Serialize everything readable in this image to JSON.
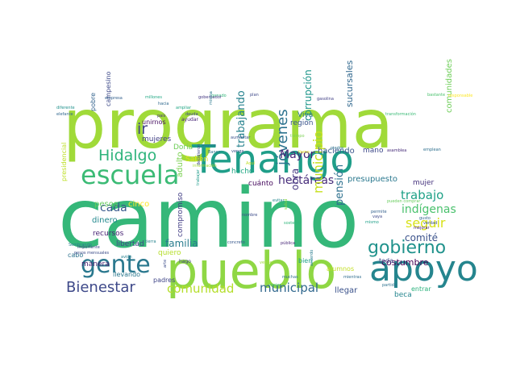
{
  "word_cloud": {
    "words": [
      {
        "text": "camino",
        "color": "#35b779"
      },
      {
        "text": "programa",
        "color": "#a0da39"
      },
      {
        "text": "pueblo",
        "color": "#8fd744"
      },
      {
        "text": "Tenango",
        "color": "#1f9e89"
      },
      {
        "text": "apoyo",
        "color": "#25858e"
      },
      {
        "text": "escuela",
        "color": "#3bbb75"
      },
      {
        "text": "gente",
        "color": "#2a788e"
      },
      {
        "text": "gobierno",
        "color": "#20928c"
      },
      {
        "text": "Hidalgo",
        "color": "#2fb47c"
      },
      {
        "text": "Bienestar",
        "color": "#3e4989"
      },
      {
        "text": "comunidad",
        "color": "#b5de2b"
      },
      {
        "text": "municipal",
        "color": "#31688e"
      },
      {
        "text": "trabajo",
        "color": "#1fa187"
      },
      {
        "text": "ir",
        "color": "#414487"
      },
      {
        "text": "jóvenes",
        "color": "#2c728e"
      },
      {
        "text": "hectáreas",
        "color": "#472d7b"
      },
      {
        "text": "municipio",
        "color": "#c8e020"
      },
      {
        "text": "seguir",
        "color": "#d8e219"
      },
      {
        "text": "indígenas",
        "color": "#4ac16d"
      },
      {
        "text": "cada",
        "color": "#38598c"
      },
      {
        "text": "familia",
        "color": "#287c8e"
      },
      {
        "text": "pensión",
        "color": "#2d708e"
      },
      {
        "text": "costumbre",
        "color": "#440154"
      },
      {
        "text": "comité",
        "color": "#3b528b"
      },
      {
        "text": "Mayor",
        "color": "#482878"
      },
      {
        "text": "corrupción",
        "color": "#1f968b"
      },
      {
        "text": "trabajando",
        "color": "#26828e"
      },
      {
        "text": "obra",
        "color": "#453781"
      },
      {
        "text": "comunidades",
        "color": "#6ece58"
      },
      {
        "text": "sucursales",
        "color": "#31688e"
      },
      {
        "text": "presupuesto",
        "color": "#2a788e"
      },
      {
        "text": "haciendo",
        "color": "#39568c"
      },
      {
        "text": "mano",
        "color": "#3e4989"
      },
      {
        "text": "mujer",
        "color": "#46337e"
      },
      {
        "text": "adulto",
        "color": "#7ad151"
      },
      {
        "text": "pesos",
        "color": "#65cb5e"
      },
      {
        "text": "cinco",
        "color": "#fde725"
      },
      {
        "text": "dinero",
        "color": "#23898e"
      },
      {
        "text": "recursos",
        "color": "#482475"
      },
      {
        "text": "libertad",
        "color": "#414487"
      },
      {
        "text": "compromiso",
        "color": "#433e85"
      },
      {
        "text": "quiero",
        "color": "#b5de2b"
      },
      {
        "text": "manera",
        "color": "#481f70"
      },
      {
        "text": "cabo",
        "color": "#2c728e"
      },
      {
        "text": "llevando",
        "color": "#2a788e"
      },
      {
        "text": "padres",
        "color": "#404688"
      },
      {
        "text": "alumnos",
        "color": "#c2df23"
      },
      {
        "text": "bien",
        "color": "#1fa188"
      },
      {
        "text": "toda",
        "color": "#3f4788"
      },
      {
        "text": "llegar",
        "color": "#3b528b"
      },
      {
        "text": "beca",
        "color": "#25858e"
      },
      {
        "text": "entrar",
        "color": "#2db27d"
      },
      {
        "text": "región",
        "color": "#3a548c"
      },
      {
        "text": "Viva",
        "color": "#2b748e"
      },
      {
        "text": "hecho",
        "color": "#22a884"
      },
      {
        "text": "cuánto",
        "color": "#460b5e"
      },
      {
        "text": "Saben",
        "color": "#dde318"
      },
      {
        "text": "Doria",
        "color": "#6ece58"
      },
      {
        "text": "mujeres",
        "color": "#424186"
      },
      {
        "text": "unirnos",
        "color": "#471063"
      },
      {
        "text": "campesino",
        "color": "#3e4a89"
      },
      {
        "text": "pobre",
        "color": "#33638d"
      },
      {
        "text": "presidencial",
        "color": "#bddf26"
      },
      {
        "text": "ayudar",
        "color": "#482677"
      },
      {
        "text": "aumentar",
        "color": "#3b528b"
      },
      {
        "text": "tiempo",
        "color": "#7ad151"
      },
      {
        "text": "venga",
        "color": "#3a548c"
      },
      {
        "text": "llamo",
        "color": "#e5e419"
      },
      {
        "text": "piedra",
        "color": "#2c728e"
      },
      {
        "text": "asamblea",
        "color": "#472c7a"
      },
      {
        "text": "emplean",
        "color": "#2e6f8e"
      },
      {
        "text": "transformación",
        "color": "#3aba76"
      },
      {
        "text": "bastante",
        "color": "#4ac16d"
      },
      {
        "text": "información",
        "color": "#a5db36"
      },
      {
        "text": "ganado",
        "color": "#32b67a"
      },
      {
        "text": "diferente",
        "color": "#21918c"
      },
      {
        "text": "empresa",
        "color": "#34618d"
      },
      {
        "text": "millones",
        "color": "#22a884"
      },
      {
        "text": "hacia",
        "color": "#30698e"
      },
      {
        "text": "gobernador",
        "color": "#453882"
      },
      {
        "text": "plan",
        "color": "#3e4989"
      },
      {
        "text": "gasolina",
        "color": "#424086"
      },
      {
        "text": "responsable",
        "color": "#fde725"
      },
      {
        "text": "elefante",
        "color": "#31688e"
      },
      {
        "text": "país",
        "color": "#46307e"
      },
      {
        "text": "deuda",
        "color": "#3f4889"
      },
      {
        "text": "ampliar",
        "color": "#22a785"
      },
      {
        "text": "misma",
        "color": "#2a788e"
      },
      {
        "text": "Banco",
        "color": "#2d708e"
      },
      {
        "text": "avance",
        "color": "#2e6e8e"
      },
      {
        "text": "decidieron",
        "color": "#3f4889"
      },
      {
        "text": "Aquí",
        "color": "#c0df25"
      },
      {
        "text": "nombre",
        "color": "#3d4d8a"
      },
      {
        "text": "evitar",
        "color": "#24878e"
      },
      {
        "text": "salud",
        "color": "#8bd646"
      },
      {
        "text": "permite",
        "color": "#34608d"
      },
      {
        "text": "vaya",
        "color": "#3e4989"
      },
      {
        "text": "pueden comprar",
        "color": "#67cc5c"
      },
      {
        "text": "gusto",
        "color": "#32648e"
      },
      {
        "text": "verdad",
        "color": "#3b528b"
      },
      {
        "text": "mismo",
        "color": "#1f9f88"
      },
      {
        "text": "mejorar",
        "color": "#482071"
      },
      {
        "text": "partido",
        "color": "#2c728e"
      },
      {
        "text": "mientras",
        "color": "#2f6c8e"
      },
      {
        "text": "Sembrando",
        "color": "#287d8e"
      },
      {
        "text": "pesos mensuales",
        "color": "#3d4e8a"
      },
      {
        "text": "importante",
        "color": "#3f4788"
      },
      {
        "text": "avión",
        "color": "#27808e"
      },
      {
        "text": "tierra",
        "color": "#25848e"
      },
      {
        "text": "concreto",
        "color": "#38588c"
      },
      {
        "text": "pública",
        "color": "#482677"
      },
      {
        "text": "trabajar",
        "color": "#1e9b8a"
      },
      {
        "text": "hago",
        "color": "#424186"
      },
      {
        "text": "arte",
        "color": "#3d4d8a"
      },
      {
        "text": "mejor",
        "color": "#3dbc74"
      },
      {
        "text": "acuerdo",
        "color": "#287c8e"
      },
      {
        "text": "vender",
        "color": "#a0da39"
      },
      {
        "text": "muchas",
        "color": "#2d718e"
      },
      {
        "text": "sostener",
        "color": "#31b57b"
      }
    ]
  }
}
